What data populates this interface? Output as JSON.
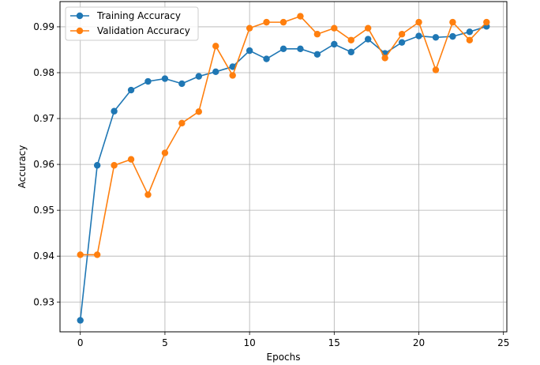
{
  "chart_data": {
    "type": "line",
    "title": "",
    "xlabel": "Epochs",
    "ylabel": "Accuracy",
    "xlim": [
      -1.2,
      25.2
    ],
    "ylim": [
      0.9235,
      0.9955
    ],
    "xticks": [
      0,
      5,
      10,
      15,
      20,
      25
    ],
    "xtick_labels": [
      "0",
      "5",
      "10",
      "15",
      "20",
      "25"
    ],
    "yticks": [
      0.93,
      0.94,
      0.95,
      0.96,
      0.97,
      0.98,
      0.99
    ],
    "ytick_labels": [
      "0.93",
      "0.94",
      "0.95",
      "0.96",
      "0.97",
      "0.98",
      "0.99"
    ],
    "grid": true,
    "legend_position": "top-left",
    "x": [
      0,
      1,
      2,
      3,
      4,
      5,
      6,
      7,
      8,
      9,
      10,
      11,
      12,
      13,
      14,
      15,
      16,
      17,
      18,
      19,
      20,
      21,
      22,
      23,
      24
    ],
    "series": [
      {
        "name": "Training Accuracy",
        "color": "#1f77b4",
        "values": [
          0.926,
          0.9598,
          0.9716,
          0.9762,
          0.9781,
          0.9787,
          0.9776,
          0.9792,
          0.9802,
          0.9813,
          0.9848,
          0.983,
          0.9852,
          0.9852,
          0.984,
          0.9862,
          0.9845,
          0.9873,
          0.9842,
          0.9866,
          0.988,
          0.9877,
          0.9879,
          0.9889,
          0.9901
        ]
      },
      {
        "name": "Validation Accuracy",
        "color": "#ff7f0e",
        "values": [
          0.9403,
          0.9403,
          0.9598,
          0.9611,
          0.9534,
          0.9625,
          0.969,
          0.9715,
          0.9858,
          0.9794,
          0.9897,
          0.991,
          0.991,
          0.9923,
          0.9884,
          0.9897,
          0.9871,
          0.9897,
          0.9832,
          0.9884,
          0.991,
          0.9806,
          0.991,
          0.9871,
          0.991
        ]
      }
    ]
  }
}
